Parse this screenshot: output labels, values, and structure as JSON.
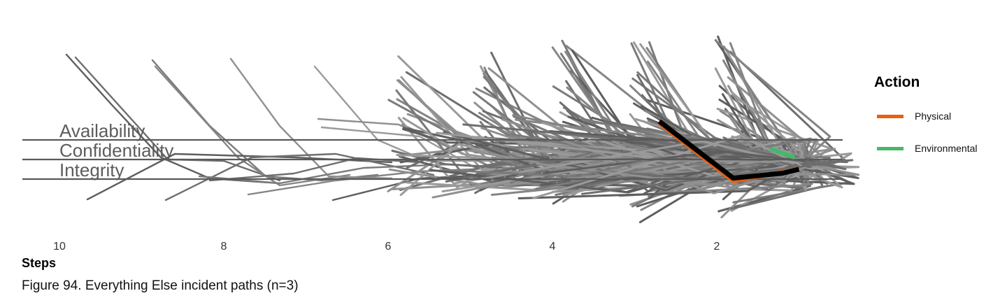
{
  "chart_data": {
    "type": "line",
    "title": "",
    "xlabel": "Steps",
    "ylabel": "",
    "x_ticks": [
      10,
      8,
      6,
      4,
      2
    ],
    "x_reversed": true,
    "xlim": [
      10.5,
      0.4
    ],
    "y_categories": [
      "Availability",
      "Confidentiality",
      "Integrity"
    ],
    "grid": false,
    "legend": {
      "title": "Action",
      "position": "right",
      "entries": [
        {
          "label": "Physical",
          "color": "#e8600f"
        },
        {
          "label": "Environmental",
          "color": "#45b86b"
        }
      ]
    },
    "background_path_color": "#808080",
    "series": [
      {
        "name": "Physical",
        "color": "#e8600f",
        "points": [
          [
            2.7,
            1.85
          ],
          [
            1.8,
            -1.1
          ],
          [
            1.0,
            -0.5
          ]
        ]
      },
      {
        "name": "",
        "color": "#000000",
        "points": [
          [
            2.7,
            1.95
          ],
          [
            1.8,
            -0.95
          ],
          [
            1.2,
            -0.7
          ],
          [
            1.0,
            -0.5
          ]
        ]
      },
      {
        "name": "Environmental",
        "color": "#45b86b",
        "points": [
          [
            1.35,
            0.55
          ],
          [
            1.05,
            0.1
          ]
        ]
      }
    ]
  },
  "caption": "Figure 94. Everything Else incident paths (n=3)"
}
